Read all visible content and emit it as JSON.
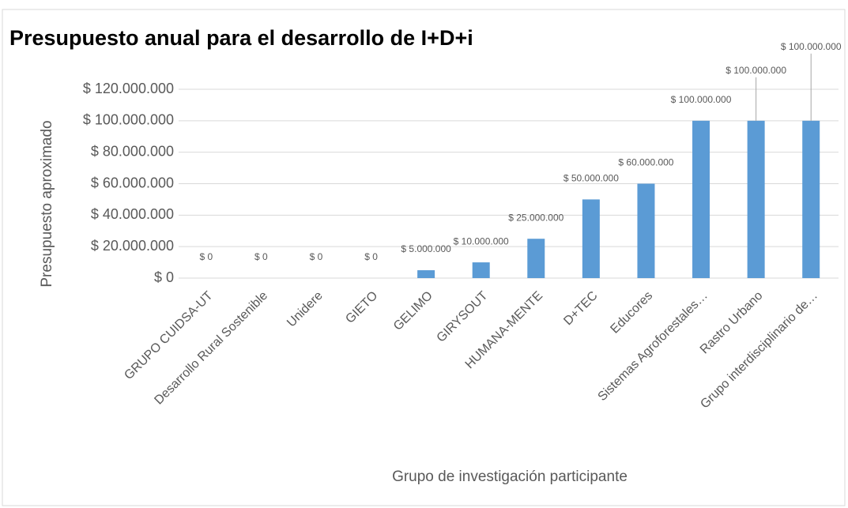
{
  "chart_data": {
    "type": "bar",
    "title": "Presupuesto anual para el desarrollo de I+D+i",
    "y_label": "Presupuesto aproximado",
    "x_label": "Grupo de investigación participante",
    "categories": [
      "GRUPO CUIDSA-UT",
      "Desarrollo Rural Sostenible",
      "Unidere",
      "GIETO",
      "GELIMO",
      "GIRYSOUT",
      "HUMANA-MENTE",
      "D+TEC",
      "Educores",
      "Sistemas Agroforestales…",
      "Rastro Urbano",
      "Grupo interdisciplinario de…"
    ],
    "values": [
      0,
      0,
      0,
      0,
      5000000,
      10000000,
      25000000,
      50000000,
      60000000,
      100000000,
      100000000,
      100000000
    ],
    "value_labels": [
      "$ 0",
      "$ 0",
      "$ 0",
      "$ 0",
      "$ 5.000.000",
      "$ 10.000.000",
      "$ 25.000.000",
      "$ 50.000.000",
      "$ 60.000.000",
      "$ 100.000.000",
      "$ 100.000.000",
      "$ 100.000.000"
    ],
    "color": "#5b9bd5",
    "ylim": [
      0,
      120000000
    ],
    "yticks": [
      {
        "value": 0,
        "label": "$ 0"
      },
      {
        "value": 20000000,
        "label": "$ 20.000.000"
      },
      {
        "value": 40000000,
        "label": "$ 40.000.000"
      },
      {
        "value": 60000000,
        "label": "$ 60.000.000"
      },
      {
        "value": 80000000,
        "label": "$ 80.000.000"
      },
      {
        "value": 100000000,
        "label": "$ 100.000.000"
      },
      {
        "value": 120000000,
        "label": "$ 120.000.000"
      }
    ],
    "grid": true
  }
}
